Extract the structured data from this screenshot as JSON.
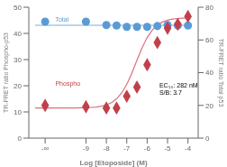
{
  "chart_data": {
    "type": "scatter",
    "xlabel": "Log [Etoposide] (M)",
    "ylabel": "TR-FRET ratio Phospho-p53",
    "y2label": "TR-FRET ratio Total p53",
    "xlim": [
      -11.8,
      -3.5
    ],
    "xticks": [
      {
        "value": -11,
        "label": "-∞"
      },
      -9,
      -8,
      -7,
      -6,
      -5,
      -4
    ],
    "ylim": [
      0,
      50
    ],
    "yticks": [
      0,
      10,
      20,
      30,
      40,
      50
    ],
    "y2lim": [
      0,
      80
    ],
    "y2ticks": [
      0,
      20,
      40,
      60,
      80
    ],
    "grid": false,
    "series": [
      {
        "type": "line",
        "color": "#d97080",
        "line_style": "solid",
        "x": [
          -11.5,
          -11.25,
          -11,
          -10.75,
          -10.5,
          -10.25,
          -10,
          -9.75,
          -9.5,
          -9.25,
          -9,
          -8.75,
          -8.5,
          -8.25,
          -8,
          -7.75,
          -7.5,
          -7.25,
          -7,
          -6.75,
          -6.5,
          -6.25,
          -6,
          -5.75,
          -5.5,
          -5.25,
          -5,
          -4.75,
          -4.5,
          -4.25,
          -4,
          -3.9
        ],
        "values": [
          11.5004,
          11.5007,
          11.5012,
          11.5022,
          11.5039,
          11.5069,
          11.5122,
          11.5218,
          11.5387,
          11.5687,
          11.622,
          11.716,
          11.883,
          12.175,
          12.682,
          13.548,
          14.98,
          17.239,
          20.536,
          24.846,
          29.742,
          34.482,
          38.415,
          41.28,
          43.177,
          44.353,
          45.054,
          45.462,
          45.695,
          45.828,
          45.903,
          45.923
        ]
      },
      {
        "type": "line",
        "color": "#7ab0dc",
        "line_style": "solid",
        "x": [
          -11.5,
          -3.9
        ],
        "values": [
          43.1,
          43.1
        ]
      },
      {
        "type": "scatter",
        "name": "Total",
        "color": "#5b9bd5",
        "marker": "circle",
        "x": [
          -11,
          -9,
          -8,
          -7.5,
          -7,
          -6.5,
          -6,
          -5.5,
          -5,
          -4.5,
          -4
        ],
        "values": [
          44.5,
          44.5,
          43.2,
          43.0,
          42.5,
          42.5,
          42.5,
          42.8,
          43.2,
          43.0,
          43.0
        ],
        "errors": [
          0.4,
          0.4,
          0.4,
          0.4,
          0.4,
          0.4,
          0.5,
          0.5,
          0.9,
          0.5,
          0.5
        ]
      },
      {
        "type": "scatter",
        "name": "Phospho",
        "color": "#c0404a",
        "marker": "diamond",
        "x": [
          -11,
          -9,
          -8,
          -7.5,
          -7,
          -6.5,
          -6,
          -5.5,
          -5,
          -4.5,
          -4
        ],
        "values": [
          12.5,
          12.0,
          11.5,
          11.5,
          16.0,
          19.5,
          28.0,
          36.5,
          42.0,
          43.5,
          46.5
        ],
        "errors": [
          0.4,
          0.4,
          0.4,
          0.4,
          0.8,
          0.8,
          1.2,
          1.5,
          1.8,
          0.8,
          1.5
        ]
      }
    ],
    "annotations": [
      {
        "text": "Total",
        "x": -10.5,
        "y": 45.5,
        "color": "#5b9bd5"
      },
      {
        "text": "Phospho",
        "x": -10.5,
        "y": 21.0,
        "color": "#c0404a"
      },
      {
        "text": "EC₅₀: 282 nM\nS/B: 3.7",
        "x": -5.4,
        "y": 19,
        "color": "#000000"
      }
    ]
  }
}
